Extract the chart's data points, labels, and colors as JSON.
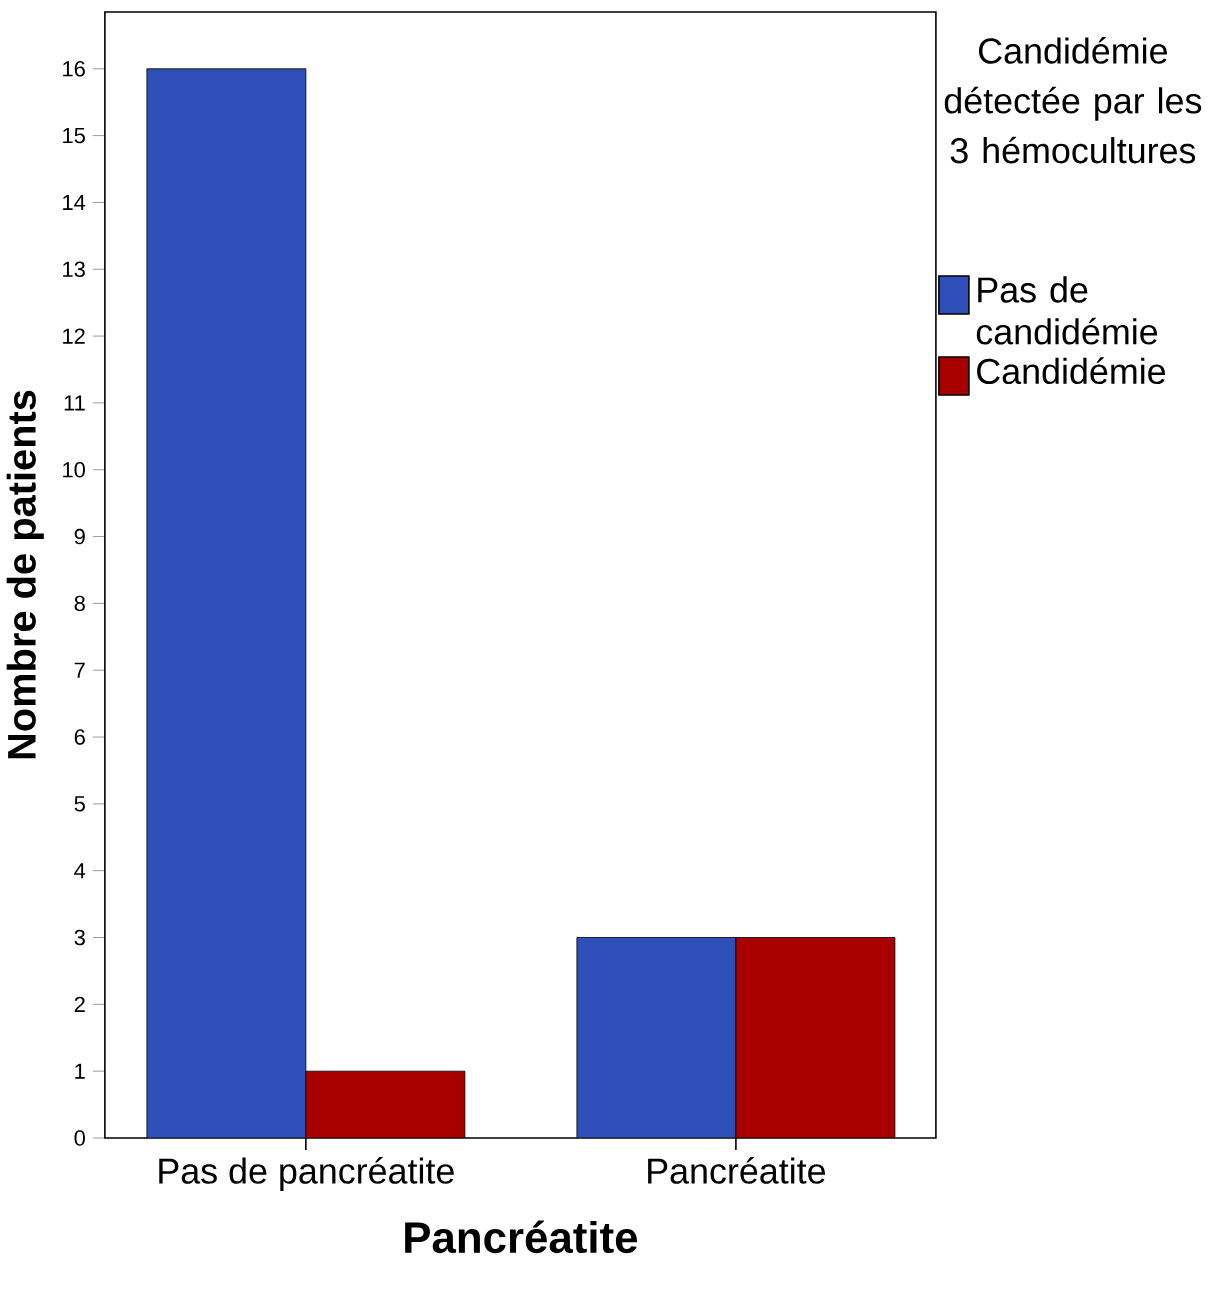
{
  "chart_data": {
    "type": "bar",
    "xlabel": "Pancréatite",
    "ylabel": "Nombre de patients",
    "legend_title": "Candidémie détectée par les 3 hémocultures",
    "categories": [
      "Pas de pancréatite",
      "Pancréatite"
    ],
    "series": [
      {
        "name": "Pas de candidémie",
        "color": "#2e4fb8",
        "values": [
          16,
          3
        ]
      },
      {
        "name": "Candidémie",
        "color": "#a80000",
        "values": [
          1,
          3
        ]
      }
    ],
    "ylim": [
      0,
      16.85
    ],
    "yticks": [
      0,
      1,
      2,
      3,
      4,
      5,
      6,
      7,
      8,
      9,
      10,
      11,
      12,
      13,
      14,
      15,
      16
    ],
    "legend": "right",
    "grid": false
  }
}
